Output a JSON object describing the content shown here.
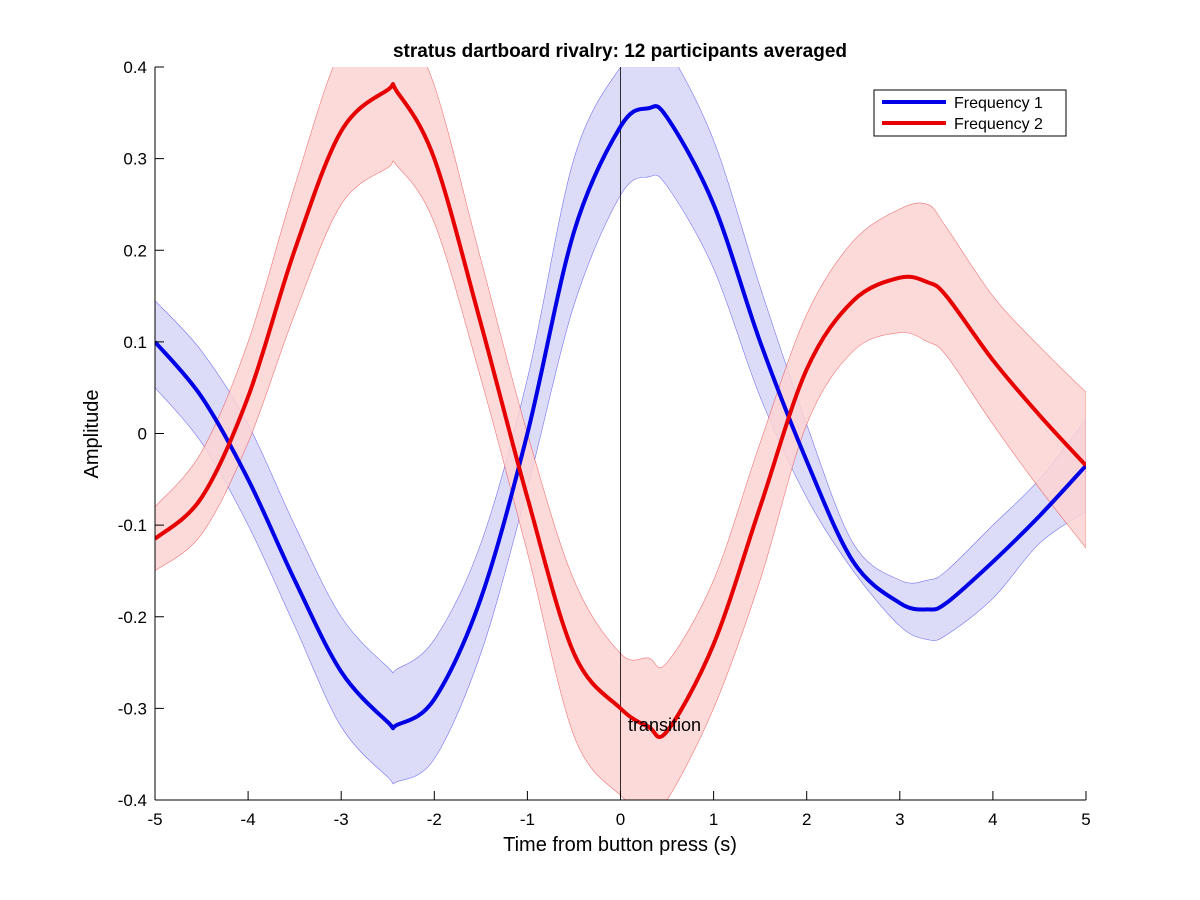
{
  "chart_data": {
    "type": "line",
    "title": "stratus dartboard rivalry: 12 participants averaged",
    "xlabel": "Time from button press (s)",
    "ylabel": "Amplitude",
    "xlim": [
      -5,
      5
    ],
    "ylim": [
      -0.4,
      0.4
    ],
    "xticks": [
      -5,
      -4,
      -3,
      -2,
      -1,
      0,
      1,
      2,
      3,
      4,
      5
    ],
    "yticks": [
      -0.4,
      -0.3,
      -0.2,
      -0.1,
      0,
      0.1,
      0.2,
      0.3,
      0.4
    ],
    "ytick_labels": [
      "-0.4",
      "-0.3",
      "-0.2",
      "-0.1",
      "0",
      "0.1",
      "0.2",
      "0.3",
      "0.4"
    ],
    "grid": false,
    "legend_position": "top-right",
    "x": [
      -5,
      -4.5,
      -4,
      -3.5,
      -3,
      -2.5,
      -2.4,
      -2,
      -1.5,
      -1,
      -0.5,
      0,
      0.3,
      0.5,
      1,
      1.5,
      2,
      2.5,
      3,
      3.3,
      3.5,
      4,
      4.5,
      5
    ],
    "series": [
      {
        "name": "Frequency 1",
        "color": "#0000e6",
        "band_color": "#d6d6f8",
        "values": [
          0.1,
          0.04,
          -0.05,
          -0.16,
          -0.26,
          -0.315,
          -0.318,
          -0.29,
          -0.18,
          0.0,
          0.22,
          0.335,
          0.355,
          0.345,
          0.25,
          0.1,
          -0.03,
          -0.14,
          -0.185,
          -0.192,
          -0.185,
          -0.14,
          -0.09,
          -0.035
        ],
        "lower": [
          0.05,
          -0.01,
          -0.1,
          -0.21,
          -0.32,
          -0.375,
          -0.38,
          -0.355,
          -0.24,
          -0.06,
          0.14,
          0.26,
          0.28,
          0.27,
          0.18,
          0.04,
          -0.07,
          -0.15,
          -0.21,
          -0.225,
          -0.22,
          -0.18,
          -0.12,
          -0.085
        ],
        "upper": [
          0.145,
          0.09,
          0.01,
          -0.1,
          -0.2,
          -0.255,
          -0.257,
          -0.225,
          -0.12,
          0.06,
          0.3,
          0.4,
          0.425,
          0.42,
          0.32,
          0.16,
          0.01,
          -0.12,
          -0.16,
          -0.16,
          -0.15,
          -0.1,
          -0.05,
          0.015
        ]
      },
      {
        "name": "Frequency 2",
        "color": "#e60000",
        "band_color": "#fbd3d3",
        "values": [
          -0.115,
          -0.07,
          0.04,
          0.2,
          0.33,
          0.375,
          0.373,
          0.3,
          0.12,
          -0.07,
          -0.24,
          -0.3,
          -0.32,
          -0.325,
          -0.23,
          -0.08,
          0.07,
          0.145,
          0.17,
          0.165,
          0.15,
          0.08,
          0.02,
          -0.035
        ],
        "lower": [
          -0.15,
          -0.11,
          -0.01,
          0.13,
          0.25,
          0.29,
          0.292,
          0.23,
          0.06,
          -0.13,
          -0.33,
          -0.395,
          -0.41,
          -0.4,
          -0.3,
          -0.16,
          0.01,
          0.09,
          0.11,
          0.1,
          0.085,
          0.01,
          -0.06,
          -0.125
        ],
        "upper": [
          -0.08,
          -0.02,
          0.1,
          0.27,
          0.42,
          0.47,
          0.46,
          0.38,
          0.19,
          0.0,
          -0.16,
          -0.24,
          -0.245,
          -0.25,
          -0.16,
          -0.01,
          0.13,
          0.21,
          0.245,
          0.25,
          0.225,
          0.15,
          0.095,
          0.045
        ]
      }
    ],
    "annotations": [
      {
        "text": "transition",
        "x": 0.08,
        "y": -0.318
      }
    ],
    "vline": {
      "x": 0
    }
  }
}
